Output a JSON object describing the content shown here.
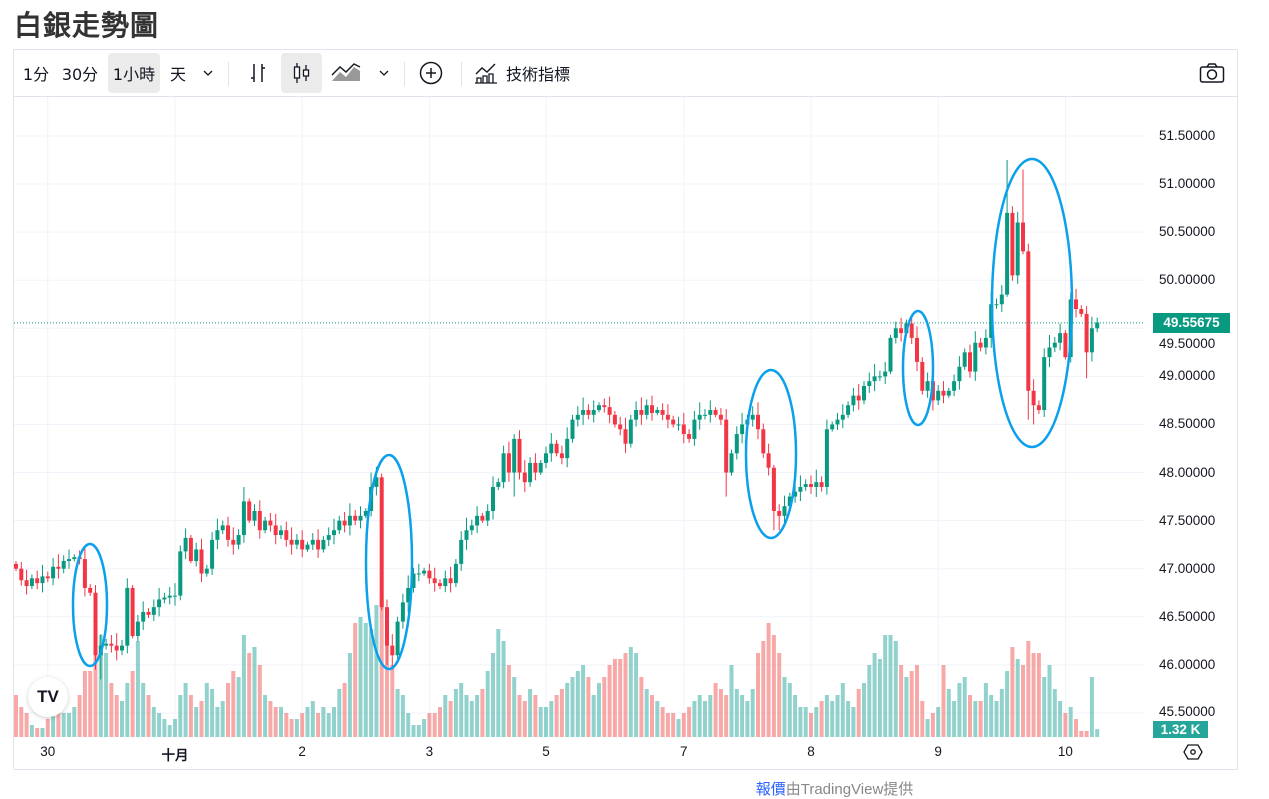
{
  "page_title": "白銀走勢圖",
  "toolbar": {
    "intervals": [
      "1分",
      "30分",
      "1小時",
      "天"
    ],
    "active_interval": "1小時",
    "indicators_label": "技術指標",
    "icons": [
      "chevron-down-icon",
      "bar-chart-icon",
      "candlestick-icon",
      "area-chart-icon",
      "plus-circle-icon",
      "indicators-icon",
      "camera-icon"
    ]
  },
  "footer": {
    "link_text": "報價",
    "text": "由TradingView提供"
  },
  "colors": {
    "up": "#089981",
    "down": "#f23645",
    "up_volume": "#26a69a",
    "down_volume": "#ef5350",
    "annotation": "#0aa0ec"
  },
  "chart_data": {
    "type": "candlestick",
    "title": "白銀走勢圖",
    "interval": "1小時",
    "ylim": [
      45.25,
      51.905
    ],
    "y_ticks": [
      "51.50000",
      "51.00000",
      "50.50000",
      "50.00000",
      "49.50000",
      "49.00000",
      "48.50000",
      "48.00000",
      "47.50000",
      "47.00000",
      "46.50000",
      "46.00000",
      "45.50000"
    ],
    "x_ticks": [
      {
        "label": "30",
        "index": 6
      },
      {
        "label": "十月",
        "index": 30,
        "bold": true
      },
      {
        "label": "2",
        "index": 54
      },
      {
        "label": "3",
        "index": 78
      },
      {
        "label": "5",
        "index": 100
      },
      {
        "label": "7",
        "index": 126
      },
      {
        "label": "8",
        "index": 150
      },
      {
        "label": "9",
        "index": 174
      },
      {
        "label": "10",
        "index": 198
      }
    ],
    "last_price": "49.55675",
    "last_price_value": 49.55675,
    "last_volume": "1.32 K",
    "close": [
      47.0,
      46.88,
      46.82,
      46.9,
      46.85,
      46.92,
      46.9,
      47.02,
      47.0,
      47.08,
      47.1,
      47.12,
      47.1,
      46.8,
      46.75,
      46.1,
      46.2,
      46.22,
      46.2,
      46.15,
      46.2,
      46.8,
      46.3,
      46.45,
      46.55,
      46.52,
      46.6,
      46.68,
      46.7,
      46.72,
      46.72,
      47.18,
      47.32,
      47.08,
      47.2,
      46.95,
      47.0,
      47.3,
      47.4,
      47.45,
      47.3,
      47.25,
      47.35,
      47.7,
      47.5,
      47.6,
      47.4,
      47.5,
      47.45,
      47.35,
      47.4,
      47.3,
      47.25,
      47.3,
      47.2,
      47.25,
      47.3,
      47.2,
      47.3,
      47.35,
      47.4,
      47.5,
      47.45,
      47.55,
      47.5,
      47.55,
      47.6,
      47.85,
      47.95,
      46.6,
      46.2,
      46.1,
      46.45,
      46.65,
      46.8,
      46.95,
      46.95,
      46.98,
      46.9,
      46.85,
      46.82,
      46.9,
      46.85,
      47.05,
      47.3,
      47.4,
      47.45,
      47.55,
      47.5,
      47.6,
      47.85,
      47.9,
      48.2,
      48.0,
      48.35,
      48.0,
      47.9,
      48.1,
      48.0,
      48.1,
      48.2,
      48.3,
      48.2,
      48.15,
      48.35,
      48.55,
      48.6,
      48.65,
      48.6,
      48.65,
      48.7,
      48.68,
      48.6,
      48.5,
      48.45,
      48.3,
      48.55,
      48.65,
      48.6,
      48.7,
      48.62,
      48.65,
      48.6,
      48.55,
      48.5,
      48.5,
      48.4,
      48.35,
      48.55,
      48.6,
      48.6,
      48.65,
      48.6,
      48.55,
      48.0,
      48.2,
      48.4,
      48.5,
      48.55,
      48.6,
      48.45,
      48.2,
      48.05,
      47.6,
      47.55,
      47.65,
      47.75,
      47.8,
      47.85,
      47.88,
      47.85,
      47.9,
      47.85,
      48.45,
      48.5,
      48.55,
      48.6,
      48.7,
      48.8,
      48.75,
      48.9,
      48.95,
      49.0,
      49.0,
      49.05,
      49.4,
      49.5,
      49.45,
      49.55,
      49.4,
      49.15,
      48.85,
      48.95,
      48.75,
      48.85,
      48.8,
      48.85,
      48.95,
      49.1,
      49.25,
      49.05,
      49.35,
      49.3,
      49.4,
      49.75,
      49.75,
      49.85,
      50.7,
      50.05,
      50.6,
      50.3,
      48.85,
      48.7,
      48.65,
      49.2,
      49.3,
      49.35,
      49.45,
      49.2,
      49.8,
      49.7,
      49.65,
      49.25,
      49.5,
      49.56
    ],
    "wick_overrides": [
      {
        "index": 15,
        "low": 45.95
      },
      {
        "index": 16,
        "low": 45.85
      },
      {
        "index": 43,
        "high": 47.85
      },
      {
        "index": 67,
        "high": 48.0
      },
      {
        "index": 70,
        "low": 46.0
      },
      {
        "index": 71,
        "low": 45.95
      },
      {
        "index": 94,
        "low": 47.75
      },
      {
        "index": 134,
        "low": 47.75
      },
      {
        "index": 143,
        "low": 47.4
      },
      {
        "index": 144,
        "low": 47.4
      },
      {
        "index": 187,
        "high": 51.25
      },
      {
        "index": 190,
        "high": 51.15
      },
      {
        "index": 191,
        "low": 48.55
      },
      {
        "index": 192,
        "low": 48.5
      },
      {
        "index": 202,
        "low": 48.98
      }
    ],
    "volume_k": [
      7,
      5,
      4,
      2,
      1.5,
      1.5,
      3,
      5,
      5,
      4,
      4,
      5,
      7,
      11,
      11,
      14,
      17,
      14,
      9,
      7,
      6,
      9,
      11,
      16,
      9,
      7,
      5,
      4,
      3,
      2,
      3,
      7,
      9,
      7,
      5,
      6,
      9,
      8,
      5,
      6,
      9,
      11,
      10,
      17,
      14,
      15,
      12,
      7,
      6,
      5,
      5,
      4,
      3,
      3,
      4,
      5,
      6,
      4,
      5,
      4,
      5,
      8,
      9,
      14,
      19,
      20,
      19,
      18,
      22,
      23,
      20,
      12,
      8,
      7,
      4,
      2,
      2,
      3,
      4,
      4,
      5,
      7,
      6,
      8,
      9,
      7,
      6,
      7,
      8,
      11,
      14,
      18,
      16,
      12,
      10,
      7,
      6,
      8,
      7,
      5,
      5,
      6,
      7,
      8,
      9,
      10,
      11,
      12,
      10,
      7,
      9,
      10,
      12,
      13,
      13,
      14,
      15,
      14,
      10,
      8,
      7,
      6,
      5,
      4,
      4,
      3,
      4,
      5,
      6,
      7,
      6,
      7,
      9,
      8,
      7,
      12,
      8,
      7,
      6,
      8,
      14,
      16,
      19,
      17,
      14,
      10,
      9,
      7,
      5,
      5,
      4,
      5,
      6,
      7,
      6,
      7,
      9,
      6,
      5,
      8,
      9,
      12,
      14,
      13,
      17,
      17,
      16,
      12,
      10,
      11,
      12,
      6,
      3,
      4,
      5,
      12,
      8,
      6,
      9,
      10,
      7,
      6,
      6,
      9,
      7,
      6,
      8,
      11,
      15,
      13,
      12,
      16,
      14,
      14,
      10,
      12,
      8,
      6,
      4,
      5,
      3,
      1,
      1,
      10,
      1.32
    ],
    "volume_max_visible_k": 25
  }
}
